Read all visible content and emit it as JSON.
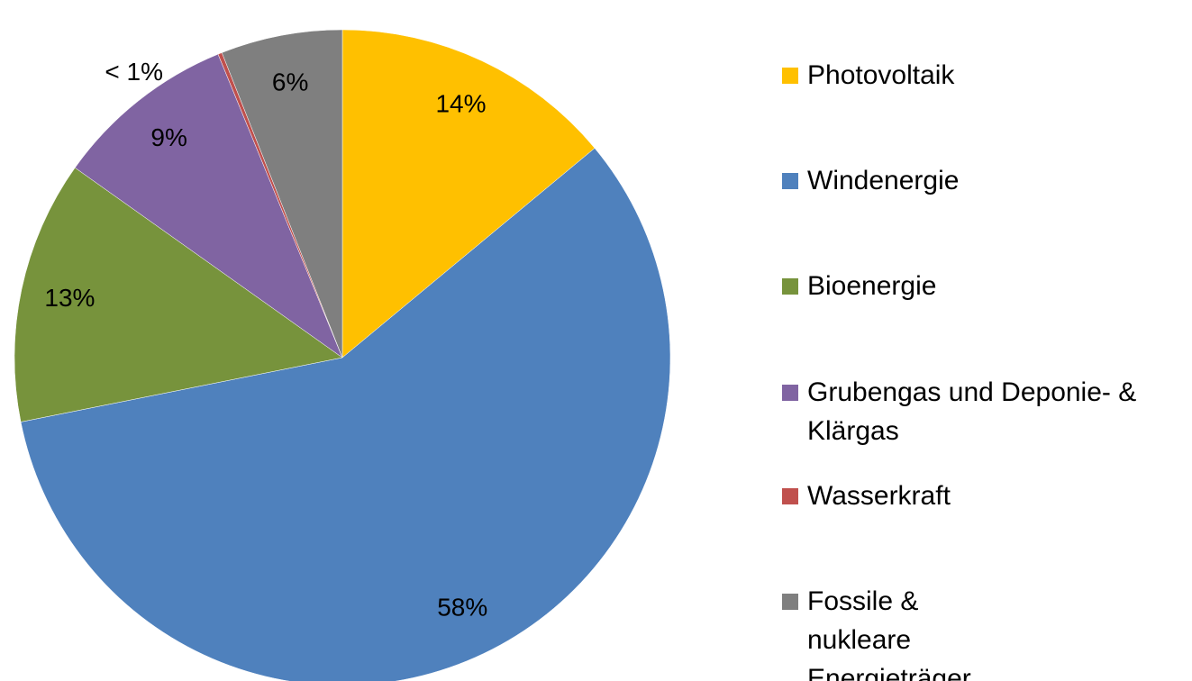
{
  "chart_data": {
    "type": "pie",
    "categories": [
      "Photovoltaik",
      "Windenergie",
      "Bioenergie",
      "Grubengas und Deponie- & Klärgas",
      "Wasserkraft",
      "Fossile & nukleare Energieträger"
    ],
    "values": [
      14,
      58,
      13,
      9,
      0.2,
      6
    ],
    "value_labels": [
      "14%",
      "58%",
      "13%",
      "9%",
      "< 1%",
      "6%"
    ],
    "colors": [
      "#FFC000",
      "#4F81BD",
      "#77933C",
      "#8064A2",
      "#C0504D",
      "#7F7F7F"
    ],
    "legend": "right"
  }
}
